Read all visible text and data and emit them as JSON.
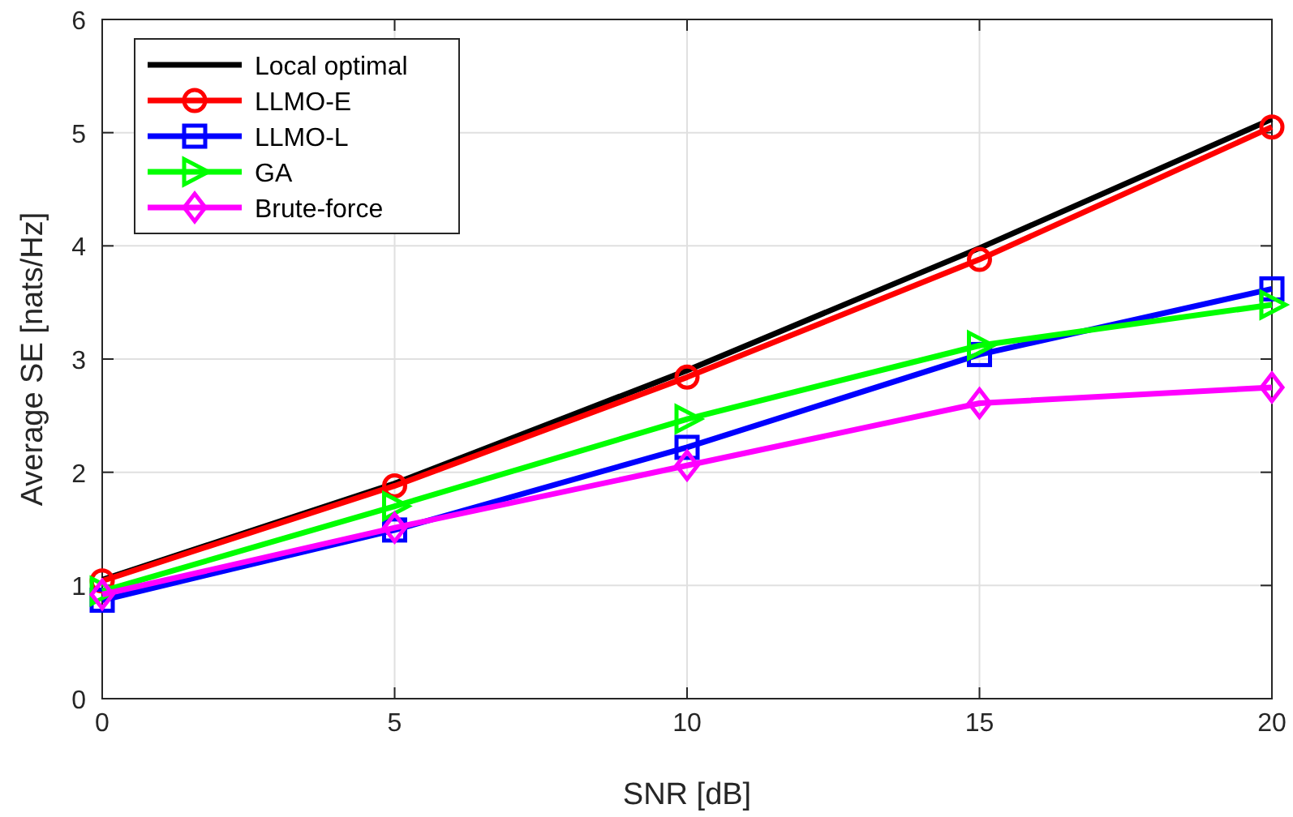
{
  "chart_data": {
    "type": "line",
    "xlabel": "SNR [dB]",
    "ylabel": "Average SE [nats/Hz]",
    "x": [
      0,
      5,
      10,
      15,
      20
    ],
    "xlim": [
      0,
      20
    ],
    "xticks": [
      0,
      5,
      10,
      15,
      20
    ],
    "ylim": [
      0,
      6
    ],
    "yticks": [
      0,
      1,
      2,
      3,
      4,
      5,
      6
    ],
    "grid": true,
    "legend": "top left",
    "line_style": "solid",
    "series": [
      {
        "name": "Local optimal",
        "color": "#000000",
        "marker": "none",
        "values": [
          1.05,
          1.9,
          2.9,
          3.98,
          5.12
        ]
      },
      {
        "name": "LLMO-E",
        "color": "#ff0000",
        "marker": "circle",
        "values": [
          1.04,
          1.88,
          2.84,
          3.88,
          5.05
        ]
      },
      {
        "name": "LLMO-L",
        "color": "#0000ff",
        "marker": "square",
        "values": [
          0.87,
          1.49,
          2.22,
          3.04,
          3.62
        ]
      },
      {
        "name": "GA",
        "color": "#00ff00",
        "marker": "triangle",
        "values": [
          0.95,
          1.7,
          2.47,
          3.12,
          3.48
        ]
      },
      {
        "name": "Brute-force",
        "color": "#ff00ff",
        "marker": "diamond",
        "values": [
          0.92,
          1.51,
          2.06,
          2.61,
          2.75
        ]
      }
    ]
  }
}
